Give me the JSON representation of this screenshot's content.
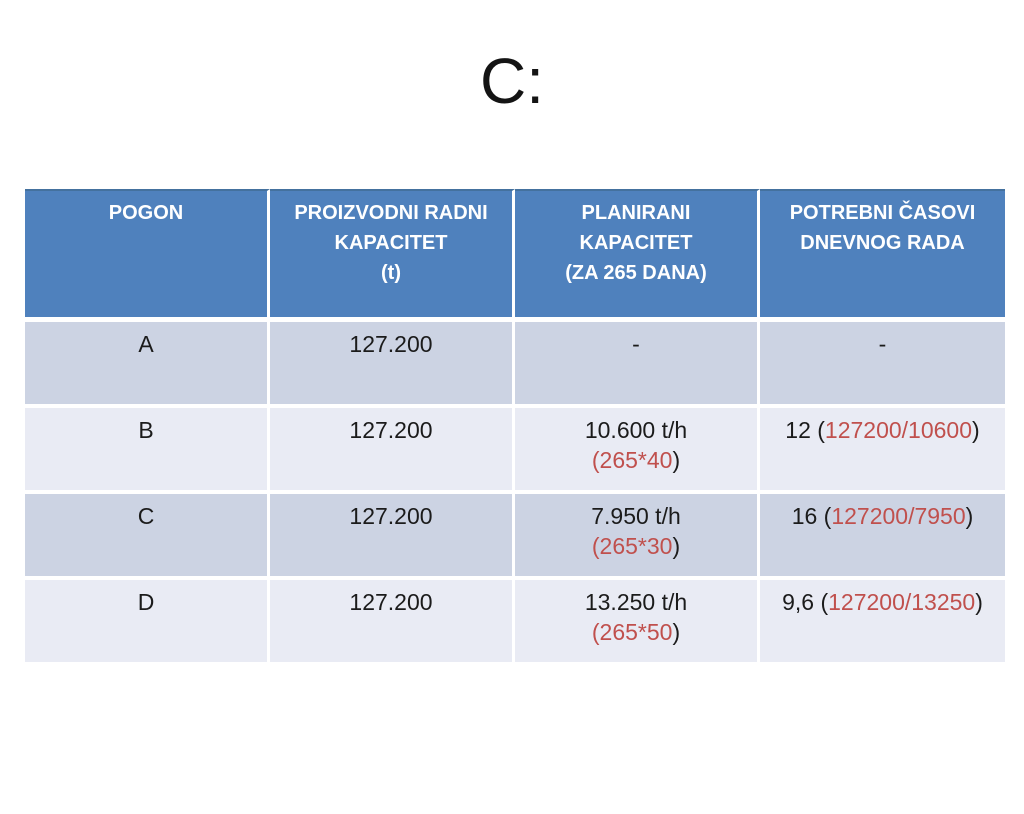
{
  "title": "C:",
  "colors": {
    "header_bg": "#4f81bd",
    "header_text": "#ffffff",
    "row_dark": "#ccd3e3",
    "row_light": "#e9ebf4",
    "accent_red": "#c0504d",
    "body_text": "#1b1b1b"
  },
  "table": {
    "headers": [
      "POGON",
      "PROIZVODNI RADNI\nKAPACITET\n(t)",
      "PLANIRANI\nKAPACITET\n(ZA 265 DANA)",
      "POTREBNI ČASOVI\nDNEVNOG RADA"
    ],
    "rows": [
      {
        "pogon": "A",
        "capacity": "127.200",
        "planned": {
          "main": "-",
          "formula_red": "",
          "formula_close": ""
        },
        "hours": {
          "prefix": "-",
          "red": "",
          "suffix": ""
        }
      },
      {
        "pogon": "B",
        "capacity": "127.200",
        "planned": {
          "main": "10.600 t/h",
          "formula_red": "(265*40",
          "formula_close": ")"
        },
        "hours": {
          "prefix": "12 (",
          "red": "127200/10600",
          "suffix": ")"
        }
      },
      {
        "pogon": "C",
        "capacity": "127.200",
        "planned": {
          "main": "7.950 t/h",
          "formula_red": "(265*30",
          "formula_close": ")"
        },
        "hours": {
          "prefix": "16 (",
          "red": "127200/7950",
          "suffix": ")"
        }
      },
      {
        "pogon": "D",
        "capacity": "127.200",
        "planned": {
          "main": "13.250 t/h",
          "formula_red": "(265*50",
          "formula_close": ")"
        },
        "hours": {
          "prefix": "9,6 (",
          "red": "127200/13250",
          "suffix": ")"
        }
      }
    ]
  }
}
